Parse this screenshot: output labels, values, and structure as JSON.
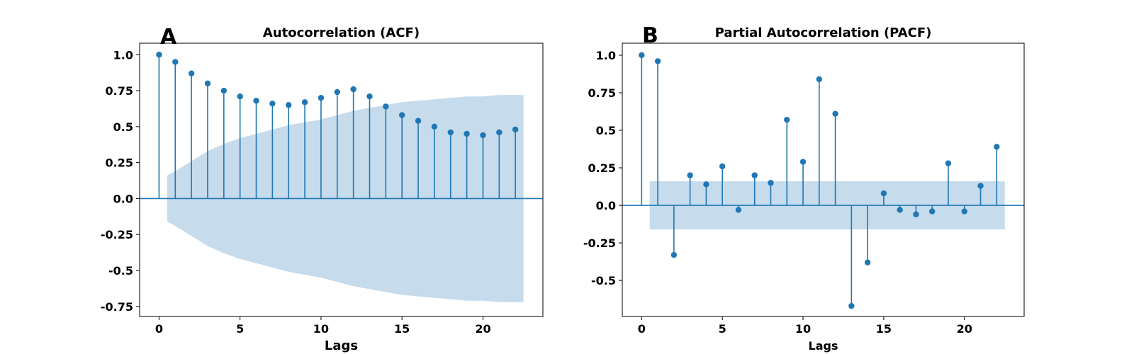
{
  "chart_data": [
    {
      "panel_label": "A",
      "type": "stem",
      "title": "Autocorrelation (ACF)",
      "xlabel": "Lags",
      "ylabel": "",
      "xlim": [
        -1.2,
        23.7
      ],
      "ylim": [
        -0.82,
        1.08
      ],
      "xticks": [
        0,
        5,
        10,
        15,
        20
      ],
      "yticks": [
        -0.75,
        -0.5,
        -0.25,
        0.0,
        0.25,
        0.5,
        0.75,
        1.0
      ],
      "ytick_labels": [
        "-0.75",
        "-0.5",
        "-0.25",
        "0.0",
        "0.25",
        "0.5",
        "0.75",
        "1.0"
      ],
      "marker_color": "#1f77b4",
      "band_color": "#c6dbec",
      "x": [
        0,
        1,
        2,
        3,
        4,
        5,
        6,
        7,
        8,
        9,
        10,
        11,
        12,
        13,
        14,
        15,
        16,
        17,
        18,
        19,
        20,
        21,
        22
      ],
      "values": [
        1.0,
        0.95,
        0.87,
        0.8,
        0.75,
        0.71,
        0.68,
        0.66,
        0.65,
        0.67,
        0.7,
        0.74,
        0.76,
        0.71,
        0.64,
        0.58,
        0.54,
        0.5,
        0.46,
        0.45,
        0.44,
        0.46,
        0.48
      ],
      "confidence_band": {
        "x": [
          0.5,
          1,
          2,
          3,
          4,
          5,
          6,
          7,
          8,
          9,
          10,
          11,
          12,
          13,
          14,
          15,
          16,
          17,
          18,
          19,
          20,
          21,
          22,
          22.5
        ],
        "upper": [
          0.16,
          0.19,
          0.26,
          0.33,
          0.38,
          0.42,
          0.45,
          0.48,
          0.51,
          0.53,
          0.55,
          0.58,
          0.61,
          0.63,
          0.65,
          0.67,
          0.68,
          0.69,
          0.7,
          0.71,
          0.71,
          0.72,
          0.72,
          0.72
        ]
      }
    },
    {
      "panel_label": "B",
      "type": "stem",
      "title": "Partial Autocorrelation (PACF)",
      "xlabel": "Lags",
      "ylabel": "",
      "xlim": [
        -1.2,
        23.7
      ],
      "ylim": [
        -0.74,
        1.08
      ],
      "xticks": [
        0,
        5,
        10,
        15,
        20
      ],
      "yticks": [
        -0.5,
        -0.25,
        0.0,
        0.25,
        0.5,
        0.75,
        1.0
      ],
      "ytick_labels": [
        "-0.5",
        "-0.25",
        "0.0",
        "0.25",
        "0.5",
        "0.75",
        "1.0"
      ],
      "marker_color": "#1f77b4",
      "band_color": "#c6dbec",
      "x": [
        0,
        1,
        2,
        3,
        4,
        5,
        6,
        7,
        8,
        9,
        10,
        11,
        12,
        13,
        14,
        15,
        16,
        17,
        18,
        19,
        20,
        21,
        22
      ],
      "values": [
        1.0,
        0.96,
        -0.33,
        0.2,
        0.14,
        0.26,
        -0.03,
        0.2,
        0.15,
        0.57,
        0.29,
        0.84,
        0.61,
        -0.67,
        -0.38,
        0.08,
        -0.03,
        -0.06,
        -0.04,
        0.28,
        -0.04,
        0.13,
        0.39
      ],
      "confidence_band": {
        "x": [
          0.5,
          22.5
        ],
        "upper": [
          0.16,
          0.16
        ]
      }
    }
  ]
}
